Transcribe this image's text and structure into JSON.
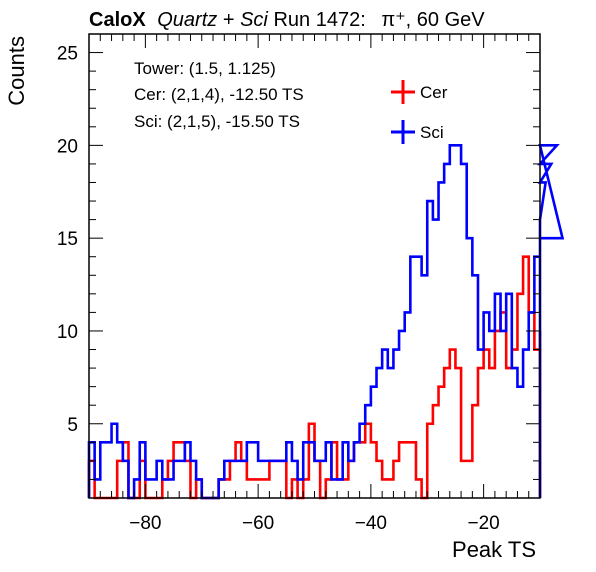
{
  "title": {
    "brand": "CaloX",
    "quartz": "Quartz",
    "plus": " + ",
    "sci": "Sci",
    "run": " Run 1472:",
    "particle": "π⁺, 60 GeV"
  },
  "info": {
    "line1": "Tower: (1.5, 1.125)",
    "line2": "Cer: (2,1,4), -12.50 TS",
    "line3": "Sci: (2,1,5), -15.50 TS"
  },
  "legend": {
    "placement": "top-right",
    "entries": [
      {
        "label": "Cer",
        "color": "#ff0000"
      },
      {
        "label": "Sci",
        "color": "#0000ff"
      }
    ]
  },
  "chart_data": {
    "type": "histogram",
    "xlabel": "Peak TS",
    "ylabel": "Counts",
    "xlim": [
      -90,
      -10
    ],
    "ylim": [
      1,
      26
    ],
    "bin_width": 1,
    "x_ticks": [
      -80,
      -60,
      -40,
      -20
    ],
    "x_tick_labels": [
      "−80",
      "−60",
      "−40",
      "−20"
    ],
    "y_ticks": [
      5,
      10,
      15,
      20,
      25
    ],
    "y_tick_labels": [
      "5",
      "10",
      "15",
      "20",
      "25"
    ],
    "series": [
      {
        "name": "Cer",
        "color": "#ff0000",
        "values": [
          3,
          1,
          1,
          1,
          1,
          3,
          4,
          1,
          1,
          3,
          1,
          1,
          1,
          2,
          3,
          4,
          4,
          3,
          1,
          2,
          1,
          1,
          1,
          2,
          2,
          3,
          4,
          3,
          2,
          2,
          2,
          2,
          3,
          3,
          3,
          1,
          2,
          1,
          2,
          5,
          3,
          1,
          2,
          4,
          2,
          2,
          3,
          4,
          4,
          5,
          4,
          3,
          2,
          2,
          3,
          4,
          4,
          4,
          2,
          1,
          5,
          6,
          7,
          8,
          9,
          8,
          3,
          3,
          6,
          8,
          9,
          8,
          10,
          11,
          8,
          9,
          12,
          14,
          11,
          9,
          10
        ]
      },
      {
        "name": "Sci",
        "color": "#0000ff",
        "values": [
          4,
          2,
          4,
          4,
          5,
          4,
          3,
          1,
          2,
          4,
          2,
          2,
          3,
          2,
          2,
          3,
          3,
          4,
          3,
          2,
          1,
          1,
          1,
          2,
          3,
          3,
          3,
          3,
          4,
          4,
          3,
          3,
          3,
          3,
          3,
          4,
          3,
          2,
          4,
          4,
          3,
          3,
          4,
          2,
          2,
          4,
          3,
          4,
          5,
          6,
          7,
          8,
          9,
          8,
          9,
          10,
          11,
          14,
          14,
          13,
          17,
          16,
          18,
          19,
          20,
          20,
          19,
          15,
          13,
          9,
          11,
          10,
          12,
          10,
          12,
          8,
          7,
          9,
          11,
          14,
          16,
          18,
          19,
          20,
          15
        ]
      }
    ]
  }
}
